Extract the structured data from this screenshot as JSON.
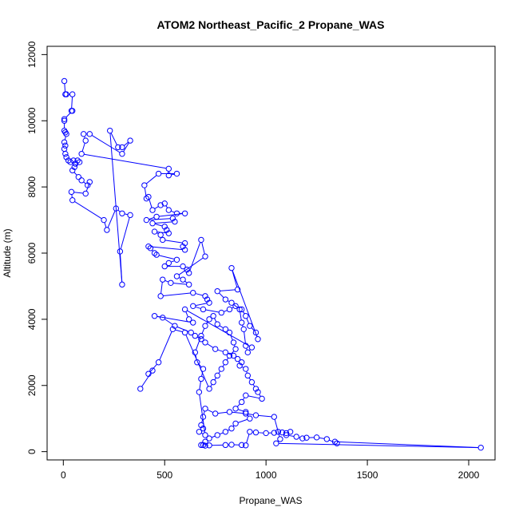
{
  "chart_data": {
    "type": "line",
    "title": "ATOM2 Northeast_Pacific_2 Propane_WAS",
    "xlabel": "Propane_WAS",
    "ylabel": "Altitude (m)",
    "xlim": [
      -80,
      2130
    ],
    "ylim": [
      -250,
      12250
    ],
    "xticks": [
      0,
      500,
      1000,
      1500,
      2000
    ],
    "yticks": [
      0,
      2000,
      4000,
      6000,
      8000,
      10000,
      12000
    ],
    "grid": false,
    "legend": "none",
    "markers": "open-circle",
    "series": [
      {
        "color": "#0000ff",
        "points": [
          [
            5,
            11200
          ],
          [
            10,
            10800
          ],
          [
            15,
            10800
          ],
          [
            45,
            10800
          ],
          [
            40,
            10300
          ],
          [
            45,
            10300
          ],
          [
            5,
            10050
          ],
          [
            5,
            10000
          ],
          [
            5,
            9700
          ],
          [
            10,
            9650
          ],
          [
            15,
            9600
          ],
          [
            5,
            9350
          ],
          [
            10,
            9250
          ],
          [
            5,
            9150
          ],
          [
            10,
            9000
          ],
          [
            15,
            8900
          ],
          [
            25,
            8800
          ],
          [
            35,
            8750
          ],
          [
            50,
            8800
          ],
          [
            60,
            8700
          ],
          [
            70,
            8800
          ],
          [
            80,
            8750
          ],
          [
            55,
            8600
          ],
          [
            45,
            8500
          ],
          [
            75,
            8300
          ],
          [
            90,
            8200
          ],
          [
            120,
            8050
          ],
          [
            130,
            8150
          ],
          [
            110,
            7800
          ],
          [
            40,
            7850
          ],
          [
            45,
            7600
          ],
          [
            200,
            7000
          ],
          [
            215,
            6700
          ],
          [
            260,
            7350
          ],
          [
            290,
            7200
          ],
          [
            330,
            7150
          ],
          [
            280,
            6050
          ],
          [
            290,
            5050
          ],
          [
            230,
            9700
          ],
          [
            270,
            9200
          ],
          [
            290,
            9200
          ],
          [
            330,
            9400
          ],
          [
            290,
            9000
          ],
          [
            130,
            9600
          ],
          [
            100,
            9600
          ],
          [
            110,
            9400
          ],
          [
            90,
            9000
          ],
          [
            520,
            8550
          ],
          [
            520,
            8350
          ],
          [
            560,
            8400
          ],
          [
            470,
            8400
          ],
          [
            400,
            8050
          ],
          [
            410,
            7650
          ],
          [
            420,
            7700
          ],
          [
            440,
            7300
          ],
          [
            480,
            7450
          ],
          [
            500,
            7500
          ],
          [
            520,
            7300
          ],
          [
            560,
            7200
          ],
          [
            600,
            7200
          ],
          [
            460,
            7100
          ],
          [
            410,
            7000
          ],
          [
            540,
            7050
          ],
          [
            550,
            6950
          ],
          [
            440,
            6900
          ],
          [
            500,
            6800
          ],
          [
            510,
            6700
          ],
          [
            520,
            6600
          ],
          [
            450,
            6650
          ],
          [
            480,
            6550
          ],
          [
            490,
            6400
          ],
          [
            600,
            6300
          ],
          [
            590,
            6200
          ],
          [
            600,
            6100
          ],
          [
            420,
            6200
          ],
          [
            430,
            6150
          ],
          [
            450,
            6000
          ],
          [
            460,
            5950
          ],
          [
            560,
            5800
          ],
          [
            520,
            5700
          ],
          [
            500,
            5600
          ],
          [
            590,
            5600
          ],
          [
            610,
            5500
          ],
          [
            620,
            5400
          ],
          [
            680,
            6400
          ],
          [
            700,
            5900
          ],
          [
            560,
            5300
          ],
          [
            590,
            5200
          ],
          [
            620,
            5050
          ],
          [
            530,
            5100
          ],
          [
            490,
            5200
          ],
          [
            480,
            4700
          ],
          [
            640,
            4800
          ],
          [
            700,
            4700
          ],
          [
            710,
            4600
          ],
          [
            720,
            4500
          ],
          [
            640,
            4400
          ],
          [
            690,
            4300
          ],
          [
            780,
            4200
          ],
          [
            820,
            4300
          ],
          [
            850,
            4400
          ],
          [
            880,
            4300
          ],
          [
            900,
            4100
          ],
          [
            920,
            3800
          ],
          [
            950,
            3600
          ],
          [
            960,
            3400
          ],
          [
            830,
            5550
          ],
          [
            860,
            4900
          ],
          [
            760,
            4850
          ],
          [
            800,
            4600
          ],
          [
            830,
            4500
          ],
          [
            870,
            4300
          ],
          [
            880,
            3900
          ],
          [
            890,
            3700
          ],
          [
            900,
            3200
          ],
          [
            910,
            3000
          ],
          [
            930,
            3150
          ],
          [
            600,
            4300
          ],
          [
            620,
            4000
          ],
          [
            640,
            3900
          ],
          [
            450,
            4100
          ],
          [
            490,
            4050
          ],
          [
            550,
            3800
          ],
          [
            630,
            3600
          ],
          [
            650,
            3500
          ],
          [
            680,
            3400
          ],
          [
            700,
            3300
          ],
          [
            750,
            3100
          ],
          [
            800,
            3000
          ],
          [
            840,
            2900
          ],
          [
            860,
            2800
          ],
          [
            880,
            2700
          ],
          [
            870,
            2600
          ],
          [
            900,
            2500
          ],
          [
            910,
            2300
          ],
          [
            930,
            2100
          ],
          [
            950,
            1900
          ],
          [
            960,
            1800
          ],
          [
            980,
            1600
          ],
          [
            900,
            1700
          ],
          [
            880,
            1500
          ],
          [
            850,
            1300
          ],
          [
            900,
            1200
          ],
          [
            920,
            1000
          ],
          [
            850,
            850
          ],
          [
            830,
            700
          ],
          [
            800,
            600
          ],
          [
            760,
            500
          ],
          [
            720,
            400
          ],
          [
            700,
            300
          ],
          [
            690,
            200
          ],
          [
            680,
            200
          ],
          [
            700,
            180
          ],
          [
            720,
            190
          ],
          [
            800,
            200
          ],
          [
            830,
            210
          ],
          [
            880,
            200
          ],
          [
            900,
            190
          ],
          [
            920,
            600
          ],
          [
            950,
            580
          ],
          [
            1000,
            560
          ],
          [
            1040,
            570
          ],
          [
            1060,
            600
          ],
          [
            1080,
            580
          ],
          [
            1100,
            560
          ],
          [
            1120,
            600
          ],
          [
            1100,
            500
          ],
          [
            1150,
            450
          ],
          [
            1180,
            400
          ],
          [
            1200,
            420
          ],
          [
            1250,
            430
          ],
          [
            1300,
            380
          ],
          [
            1350,
            250
          ],
          [
            1340,
            300
          ],
          [
            2060,
            120
          ],
          [
            1050,
            250
          ],
          [
            1070,
            380
          ],
          [
            1040,
            1050
          ],
          [
            950,
            1100
          ],
          [
            900,
            1150
          ],
          [
            820,
            1200
          ],
          [
            750,
            1150
          ],
          [
            700,
            1300
          ],
          [
            690,
            1050
          ],
          [
            680,
            800
          ],
          [
            690,
            700
          ],
          [
            670,
            600
          ],
          [
            700,
            500
          ],
          [
            670,
            1800
          ],
          [
            680,
            2200
          ],
          [
            690,
            2500
          ],
          [
            660,
            2700
          ],
          [
            650,
            3000
          ],
          [
            680,
            3500
          ],
          [
            700,
            3800
          ],
          [
            720,
            4000
          ],
          [
            740,
            4100
          ],
          [
            760,
            3850
          ],
          [
            800,
            3700
          ],
          [
            820,
            3600
          ],
          [
            840,
            3300
          ],
          [
            850,
            3100
          ],
          [
            820,
            2900
          ],
          [
            800,
            2700
          ],
          [
            780,
            2500
          ],
          [
            760,
            2300
          ],
          [
            740,
            2100
          ],
          [
            720,
            1900
          ],
          [
            600,
            3600
          ],
          [
            540,
            3700
          ],
          [
            470,
            2700
          ],
          [
            420,
            2350
          ],
          [
            440,
            2450
          ],
          [
            380,
            1900
          ]
        ]
      }
    ]
  }
}
